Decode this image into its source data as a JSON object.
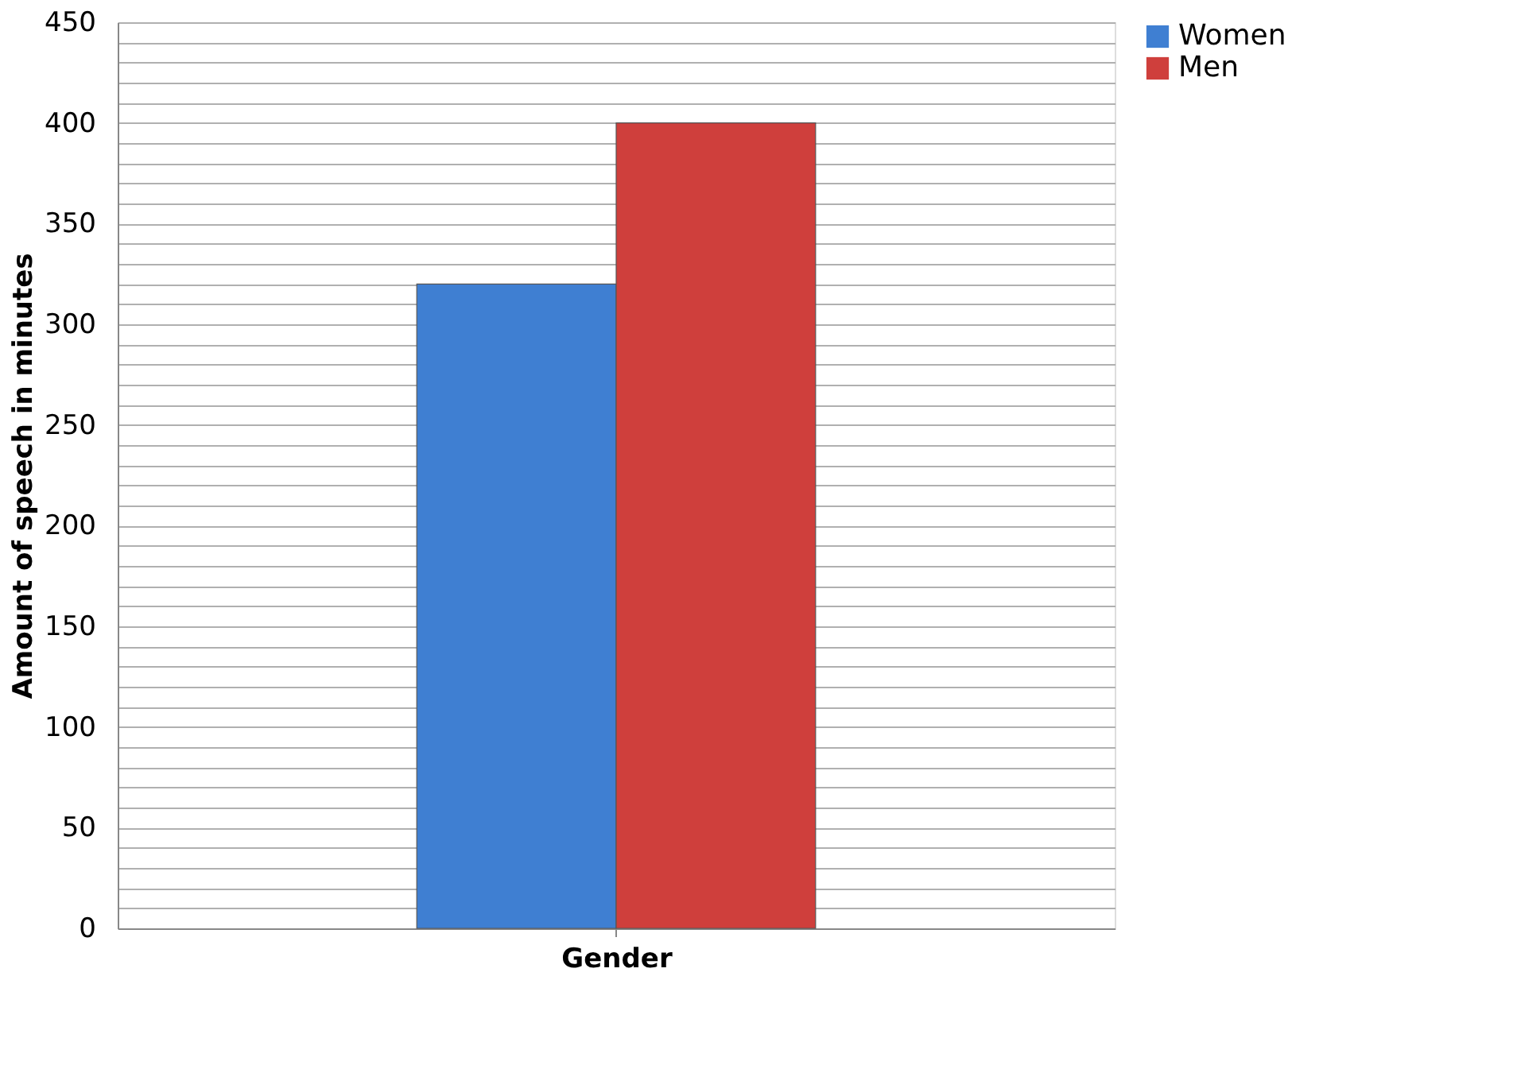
{
  "chart_data": {
    "type": "bar",
    "categories": [
      null
    ],
    "xlabel": "Gender",
    "ylabel": "Amount of speech in minutes",
    "series": [
      {
        "name": "Women",
        "color": "#3f7fd2",
        "values": [
          320
        ]
      },
      {
        "name": "Men",
        "color": "#cf3f3c",
        "values": [
          400
        ]
      }
    ],
    "ylim": [
      0,
      450
    ],
    "yticks": [
      0,
      {
        "value": 10,
        "label": null
      },
      {
        "value": 20,
        "label": null
      },
      {
        "value": 30,
        "label": null
      },
      {
        "value": 40,
        "label": null
      },
      50,
      {
        "value": 60,
        "label": null
      },
      {
        "value": 70,
        "label": null
      },
      {
        "value": 80,
        "label": null
      },
      {
        "value": 90,
        "label": null
      },
      100,
      {
        "value": 110,
        "label": null
      },
      {
        "value": 120,
        "label": null
      },
      {
        "value": 130,
        "label": null
      },
      {
        "value": 140,
        "label": null
      },
      150,
      {
        "value": 160,
        "label": null
      },
      {
        "value": 170,
        "label": null
      },
      {
        "value": 180,
        "label": null
      },
      {
        "value": 190,
        "label": null
      },
      200,
      {
        "value": 210,
        "label": null
      },
      {
        "value": 220,
        "label": null
      },
      {
        "value": 230,
        "label": null
      },
      {
        "value": 240,
        "label": null
      },
      250,
      {
        "value": 260,
        "label": null
      },
      {
        "value": 270,
        "label": null
      },
      {
        "value": 280,
        "label": null
      },
      {
        "value": 290,
        "label": null
      },
      300,
      {
        "value": 310,
        "label": null
      },
      {
        "value": 320,
        "label": null
      },
      {
        "value": 330,
        "label": null
      },
      {
        "value": 340,
        "label": null
      },
      350,
      {
        "value": 360,
        "label": null
      },
      {
        "value": 370,
        "label": null
      },
      {
        "value": 380,
        "label": null
      },
      {
        "value": 390,
        "label": null
      },
      400,
      {
        "value": 410,
        "label": null
      },
      {
        "value": 420,
        "label": null
      },
      {
        "value": 430,
        "label": null
      },
      {
        "value": 440,
        "label": null
      },
      450
    ],
    "grid": "y",
    "legend": "right"
  }
}
